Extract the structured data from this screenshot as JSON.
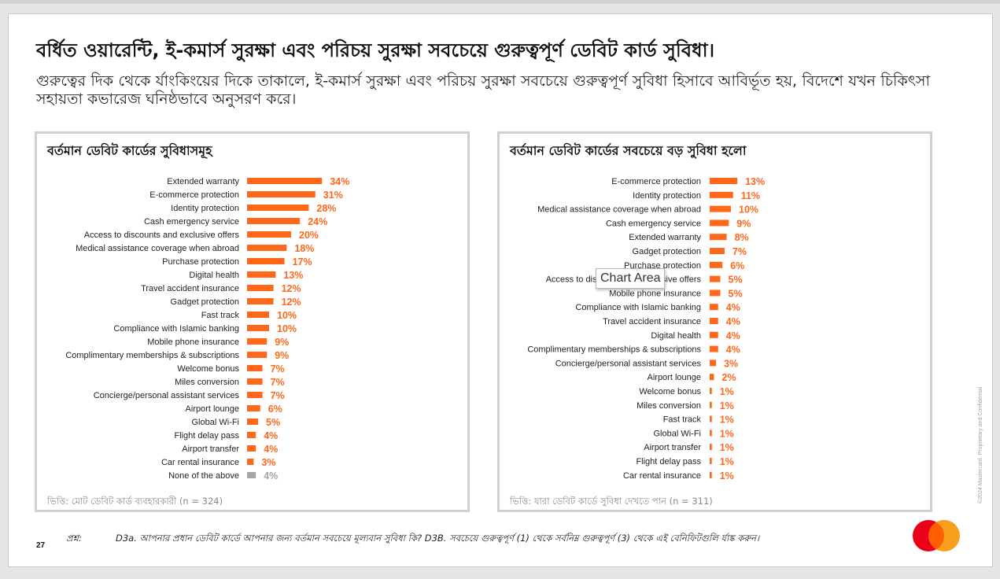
{
  "slide": {
    "title": "বর্ধিত ওয়ারেন্টি, ই-কমার্স সুরক্ষা এবং পরিচয় সুরক্ষা সবচেয়ে গুরুত্বপূর্ণ ডেবিট কার্ড সুবিধা।",
    "subtitle": "গুরুত্বের দিক থেকে র্যাংকিংয়ের দিকে তাকালে, ই-কমার্স সুরক্ষা এবং পরিচয় সুরক্ষা সবচেয়ে গুরুত্বপূর্ণ সুবিধা হিসাবে আবির্ভূত হয়, বিদেশে যখন চিকিৎসা সহায়তা কভারেজ ঘনিষ্ঠভাবে অনুসরণ করে।",
    "question_label": "প্রশ্ন:",
    "question_text": "D3a. আপনার প্রধান ডেবিট কার্ডে আপনার জন্য বর্তমান সবচেয়ে মূল্যবান সুবিধা কি? D3B. সবচেয়ে গুরুত্বপূর্ণ (1) থেকে সর্বনিম্ন গুরুত্বপূর্ণ (3) থেকে এই বেনিফিটগুলি র্যাঙ্ক করুন।",
    "page_number": "27",
    "confidentiality": "©2024 Mastercard. Proprietary and Confidential",
    "tooltip": "Chart Area"
  },
  "colors": {
    "bar": "#ff671b",
    "bar_muted": "#a6a6a6",
    "logo_red": "#eb001b",
    "logo_yellow": "#f79e1b",
    "logo_overlap": "#ff5f00"
  },
  "chart_data": [
    {
      "type": "bar",
      "orientation": "horizontal",
      "title": "বর্তমান ডেবিট কার্ডের সুবিধাসমূহ",
      "base": "ভিত্তি: মোট ডেবিট কার্ড ব্যবহারকারী (n = 324)",
      "unit": "%",
      "categories": [
        "Extended warranty",
        "E-commerce protection",
        "Identity protection",
        "Cash emergency service",
        "Access to discounts and exclusive offers",
        "Medical assistance coverage when abroad",
        "Purchase protection",
        "Digital health",
        "Travel accident insurance",
        "Gadget protection",
        "Fast track",
        "Compliance with Islamic banking",
        "Mobile phone insurance",
        "Complimentary memberships & subscriptions",
        "Welcome bonus",
        "Miles conversion",
        "Concierge/personal assistant services",
        "Airport lounge",
        "Global Wi-Fi",
        "Flight delay pass",
        "Airport transfer",
        "Car rental insurance",
        "None of the above"
      ],
      "values": [
        34,
        31,
        28,
        24,
        20,
        18,
        17,
        13,
        12,
        12,
        10,
        10,
        9,
        9,
        7,
        7,
        7,
        6,
        5,
        4,
        4,
        3,
        4
      ],
      "muted": [
        "None of the above"
      ]
    },
    {
      "type": "bar",
      "orientation": "horizontal",
      "title": "বর্তমান ডেবিট কার্ডের সবচেয়ে বড় সুবিধা হলো",
      "base": "ভিত্তি: যারা ডেবিট কার্ডে সুবিধা দেখতে পান (n = 311)",
      "unit": "%",
      "categories": [
        "E-commerce protection",
        "Identity protection",
        "Medical assistance coverage when abroad",
        "Cash emergency service",
        "Extended warranty",
        "Gadget protection",
        "Purchase protection",
        "Access to discounts and exclusive offers",
        "Mobile phone insurance",
        "Compliance with Islamic banking",
        "Travel accident insurance",
        "Digital health",
        "Complimentary memberships & subscriptions",
        "Concierge/personal assistant services",
        "Airport lounge",
        "Welcome bonus",
        "Miles conversion",
        "Fast track",
        "Global Wi-Fi",
        "Airport transfer",
        "Flight delay pass",
        "Car rental insurance"
      ],
      "values": [
        13,
        11,
        10,
        9,
        8,
        7,
        6,
        5,
        5,
        4,
        4,
        4,
        4,
        3,
        2,
        1,
        1,
        1,
        1,
        1,
        1,
        1
      ],
      "muted": []
    }
  ]
}
